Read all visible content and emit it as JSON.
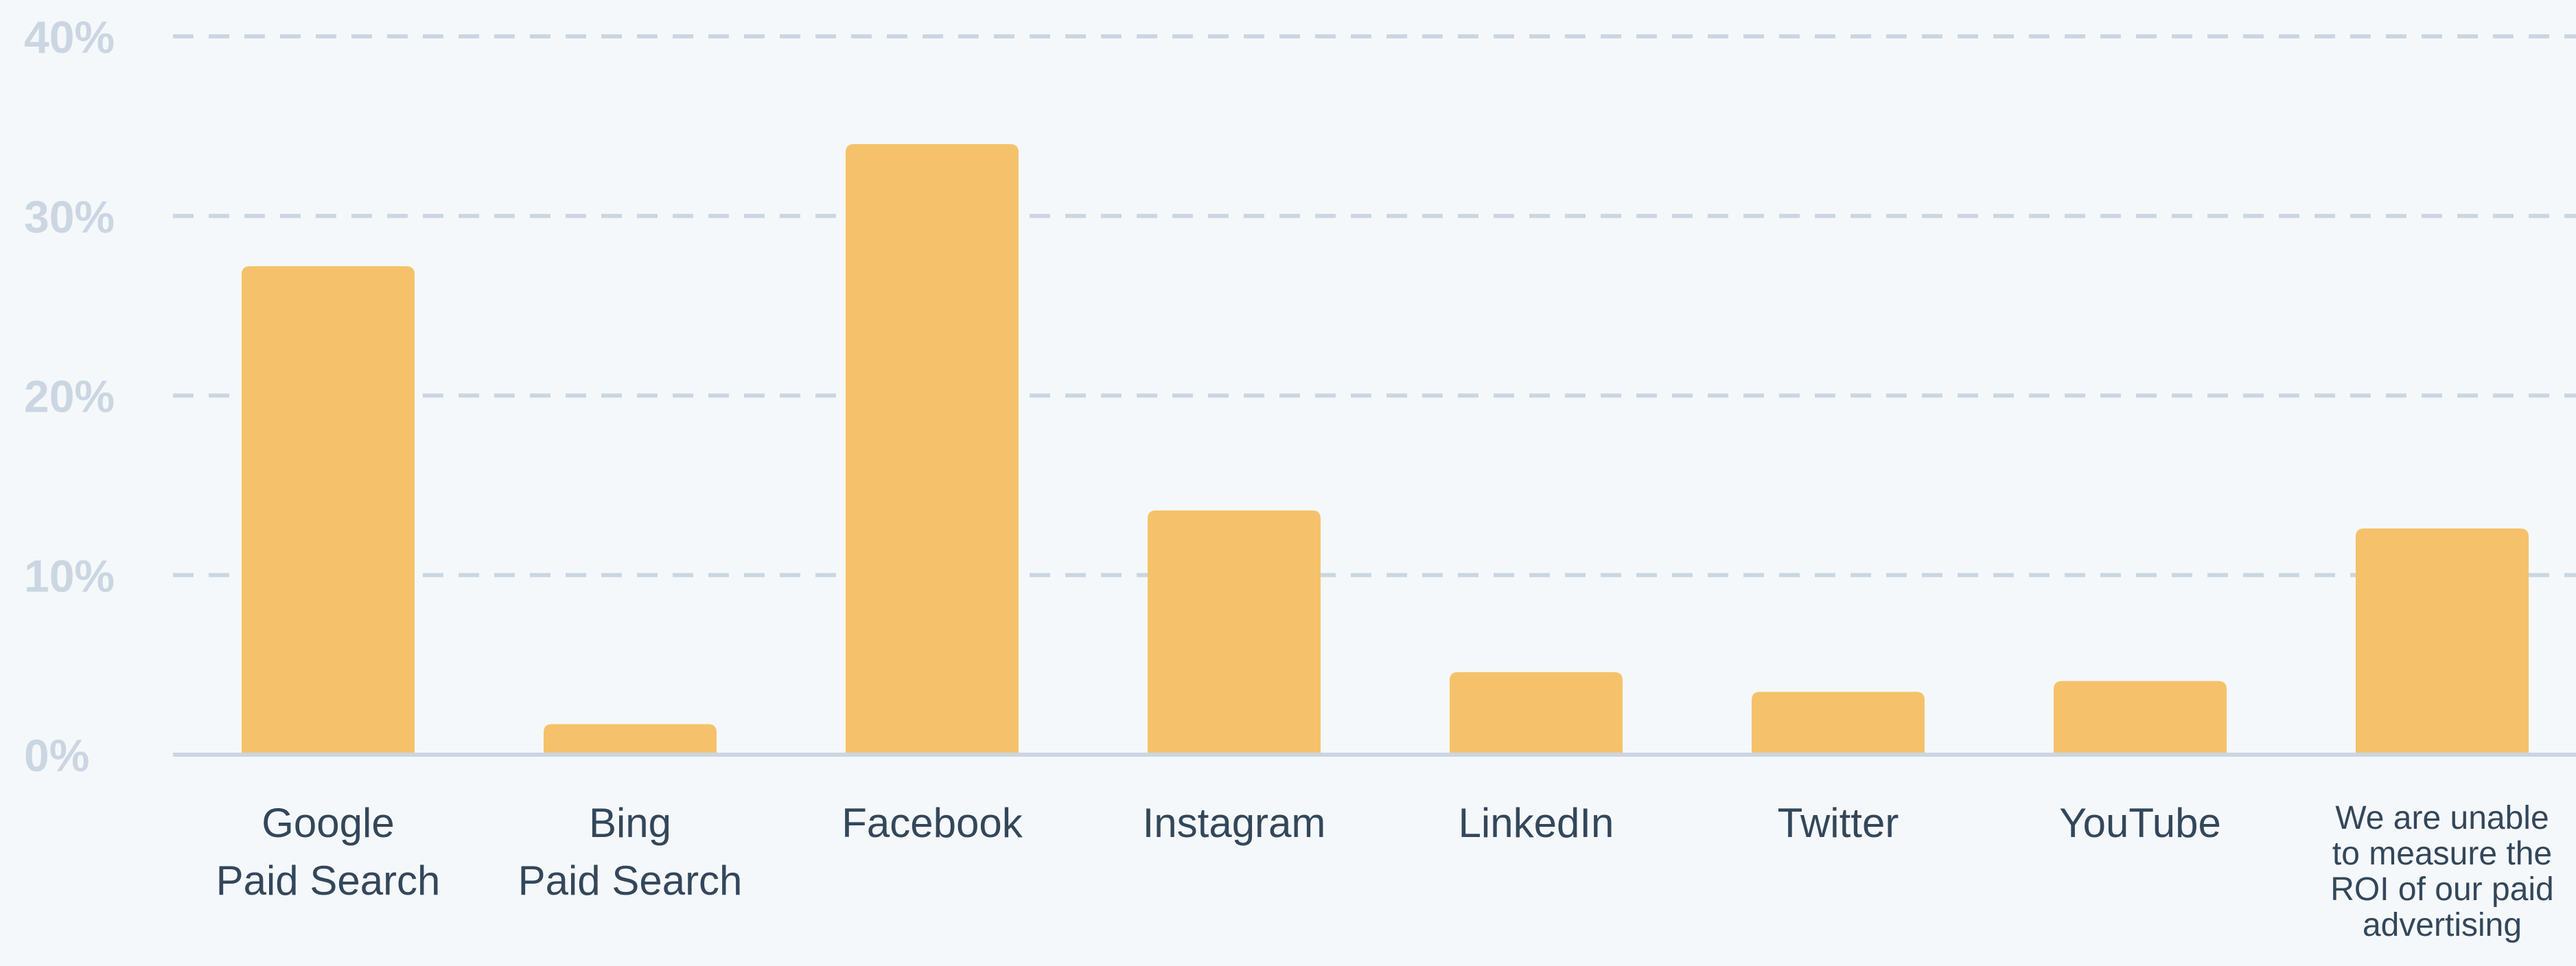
{
  "chart_data": {
    "type": "bar",
    "title": "",
    "xlabel": "",
    "ylabel": "",
    "ylim": [
      0,
      40
    ],
    "y_ticks": [
      "0%",
      "10%",
      "20%",
      "30%",
      "40%"
    ],
    "y_tick_values": [
      0,
      10,
      20,
      30,
      40
    ],
    "grid": true,
    "categories": [
      "Google Paid Search",
      "Bing Paid Search",
      "Facebook",
      "Instagram",
      "LinkedIn",
      "Twitter",
      "YouTube",
      "We are unable to measure the ROI of our paid advertising"
    ],
    "category_lines": [
      [
        "Google",
        "Paid Search"
      ],
      [
        "Bing",
        "Paid Search"
      ],
      [
        "Facebook"
      ],
      [
        "Instagram"
      ],
      [
        "LinkedIn"
      ],
      [
        "Twitter"
      ],
      [
        "YouTube"
      ],
      [
        "We are unable",
        "to measure the",
        "ROI of our paid",
        "advertising"
      ]
    ],
    "values": [
      27.2,
      1.7,
      34.0,
      13.6,
      4.6,
      3.5,
      4.1,
      12.6
    ],
    "colors": {
      "bar": "#f5c26b",
      "grid": "#cbd6e2",
      "tick_text": "#cbd6e2",
      "category_text": "#33475b",
      "background": "#f5f8fa"
    }
  }
}
